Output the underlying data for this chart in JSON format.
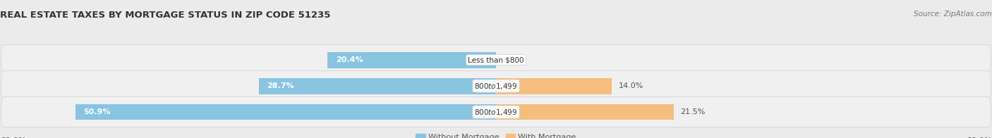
{
  "title": "REAL ESTATE TAXES BY MORTGAGE STATUS IN ZIP CODE 51235",
  "source": "Source: ZipAtlas.com",
  "categories": [
    "Less than $800",
    "$800 to $1,499",
    "$800 to $1,499"
  ],
  "without_mortgage": [
    20.4,
    28.7,
    50.9
  ],
  "with_mortgage": [
    0.0,
    14.0,
    21.5
  ],
  "xlim": 60.0,
  "bar_color_left": "#89C4E1",
  "bar_color_right": "#F5BE7E",
  "bg_color": "#EBEBEB",
  "row_bg_even": "#F5F5F5",
  "row_bg_odd": "#E8E8E8",
  "row_line_color": "#CCCCCC",
  "legend_label_left": "Without Mortgage",
  "legend_label_right": "With Mortgage",
  "title_fontsize": 9.5,
  "label_fontsize": 8,
  "tick_fontsize": 8.5,
  "source_fontsize": 7.5
}
